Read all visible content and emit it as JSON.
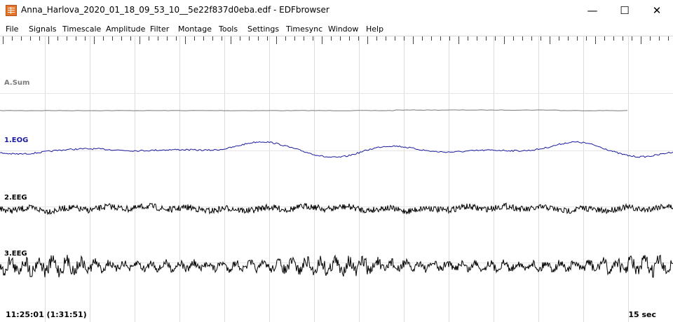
{
  "window": {
    "title": "Anna_Harlova_2020_01_18_09_53_10__5e22f837d0eba.edf - EDFbrowser",
    "minimize_glyph": "—",
    "maximize_glyph": "☐",
    "close_glyph": "✕"
  },
  "menu": [
    "File",
    "Signals",
    "Timescale",
    "Amplitude",
    "Filter",
    "Montage",
    "Tools",
    "Settings",
    "Timesync",
    "Window",
    "Help"
  ],
  "signals": [
    {
      "label": "A.Sum",
      "color": "#7a7a7a"
    },
    {
      "label": "1.EOG",
      "color": "#1a1aa0"
    },
    {
      "label": "2.EEG",
      "color": "#000000"
    },
    {
      "label": "3.EEG",
      "color": "#000000"
    }
  ],
  "footer": {
    "time": "11:25:01 (1:31:51)",
    "timescale": "15 sec"
  }
}
